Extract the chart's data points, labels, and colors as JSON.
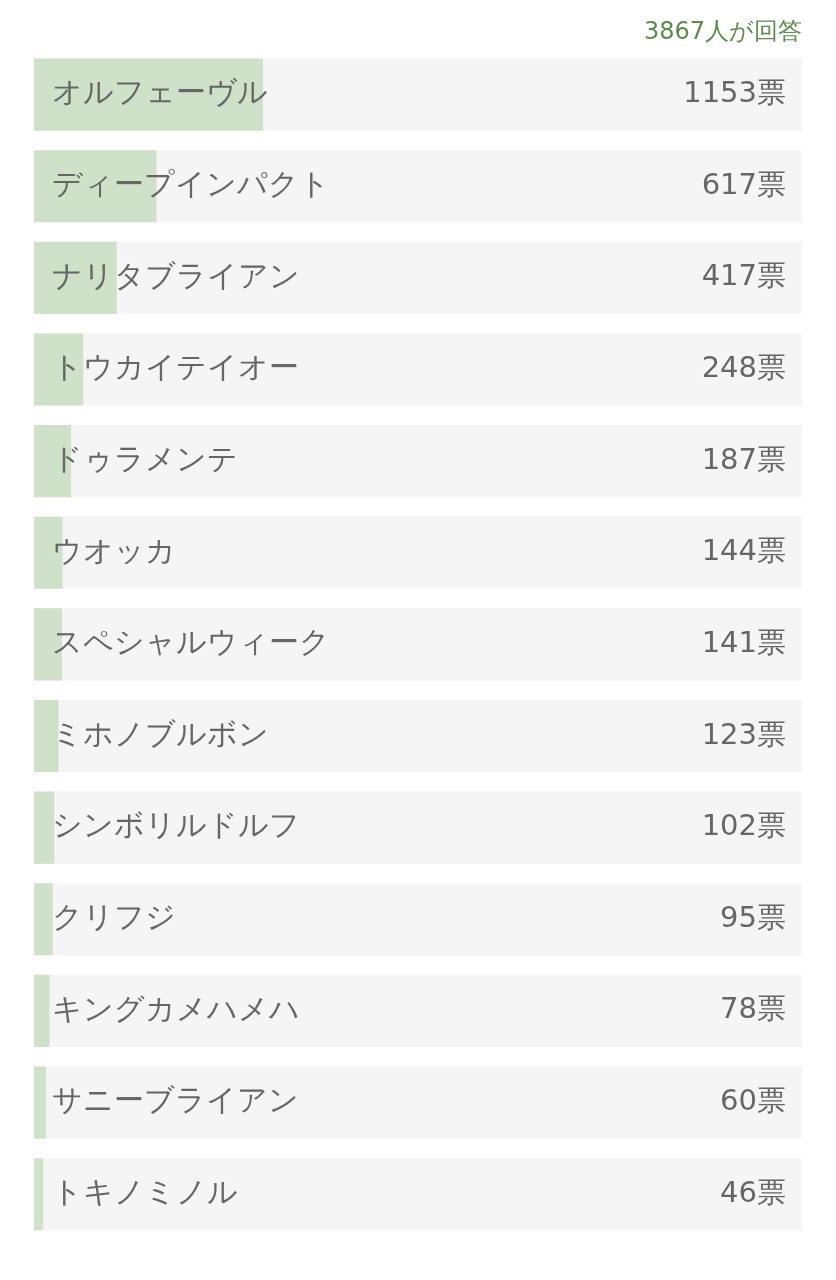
{
  "chart_data": {
    "type": "bar",
    "orientation": "horizontal",
    "subtitle": "3867人が回答",
    "categories": [
      "オルフェーヴル",
      "ディープインパクト",
      "ナリタブライアン",
      "トウカイテイオー",
      "ドゥラメンテ",
      "ウオッカ",
      "スペシャルウィーク",
      "ミホノブルボン",
      "シンボリルドルフ",
      "クリフジ",
      "キングカメハメハ",
      "サニーブライアン",
      "トキノミノル"
    ],
    "values": [
      1153,
      617,
      417,
      248,
      187,
      144,
      141,
      123,
      102,
      95,
      78,
      60,
      46
    ],
    "value_labels": [
      "1153票",
      "617票",
      "417票",
      "248票",
      "187票",
      "144票",
      "141票",
      "123票",
      "102票",
      "95票",
      "78票",
      "60票",
      "46票"
    ],
    "color": "#cfe2c9",
    "xlim": [
      0,
      3867
    ],
    "tick_labels": "y"
  }
}
